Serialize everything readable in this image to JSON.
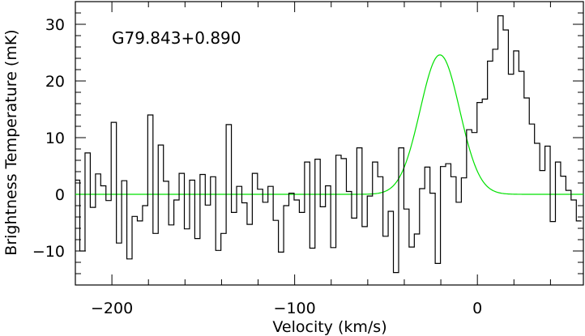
{
  "chart_data": {
    "type": "line",
    "xlabel": "Velocity (km/s)",
    "ylabel": "Brightness Temperature (mK)",
    "xlim": [
      -220,
      58
    ],
    "ylim": [
      -16,
      34
    ],
    "x_ticks": [
      -200,
      -100,
      0
    ],
    "x_tick_labels": [
      "−200",
      "−100",
      "0"
    ],
    "y_ticks": [
      -10,
      0,
      10,
      20,
      30
    ],
    "y_tick_labels": [
      "−10",
      "0",
      "10",
      "20",
      "30"
    ],
    "annotation": "G79.843+0.890",
    "grid": false,
    "series": [
      {
        "style": "step",
        "color": "#000000",
        "x": [
          -218.99,
          -216.13,
          -213.27,
          -210.41,
          -207.55,
          -204.69,
          -201.83,
          -198.97,
          -196.11,
          -193.25,
          -190.39,
          -187.53,
          -184.67,
          -181.81,
          -178.95,
          -176.09,
          -173.23,
          -170.37,
          -167.51,
          -164.65,
          -161.79,
          -158.93,
          -156.07,
          -153.21,
          -150.35,
          -147.49,
          -144.63,
          -141.77,
          -138.91,
          -136.05,
          -133.19,
          -130.33,
          -127.47,
          -124.61,
          -121.75,
          -118.89,
          -116.03,
          -113.17,
          -110.31,
          -107.45,
          -104.59,
          -101.73,
          -98.87,
          -96.01,
          -93.15,
          -90.29,
          -87.43,
          -84.57,
          -81.71,
          -78.85,
          -75.99,
          -73.13,
          -70.27,
          -67.41,
          -64.55,
          -61.69,
          -58.83,
          -55.97,
          -53.11,
          -50.25,
          -47.39,
          -44.53,
          -41.67,
          -38.81,
          -35.95,
          -33.09,
          -30.23,
          -27.37,
          -24.51,
          -21.65,
          -18.79,
          -15.93,
          -13.07,
          -10.21,
          -7.35,
          -4.49,
          -1.63,
          1.23,
          4.09,
          6.95,
          9.81,
          12.67,
          15.53,
          18.39,
          21.25,
          24.11,
          26.97,
          29.83,
          32.69,
          35.55,
          38.41,
          41.27,
          44.13,
          46.99,
          49.85,
          52.71,
          55.57
        ],
        "y": [
          2.5,
          -10,
          7.3,
          -2.3,
          3.6,
          1.5,
          -1.1,
          12.7,
          -8.6,
          2.4,
          -11.4,
          -3.9,
          -4.7,
          -2.0,
          14.0,
          -6.9,
          8.7,
          2.3,
          -5.4,
          -1.0,
          3.7,
          -6.1,
          2.5,
          -7.8,
          3.5,
          -1.9,
          3.1,
          -9.9,
          -6.9,
          12.3,
          -3.2,
          1.4,
          -1.5,
          -5.3,
          3.7,
          0.9,
          -1.4,
          1.4,
          -4.6,
          -10.2,
          -2.0,
          0.2,
          -1.0,
          -3.2,
          5.7,
          -9.5,
          6.2,
          -2.2,
          1.5,
          -9.4,
          6.9,
          6.3,
          0.5,
          -4.2,
          8.2,
          -5.7,
          -0.3,
          5.7,
          3.1,
          -7.4,
          -3.0,
          -13.8,
          8.2,
          -2.6,
          -9.3,
          -7.0,
          1.0,
          4.8,
          0.2,
          -12.2,
          4.9,
          5.4,
          3.1,
          -1.4,
          2.9,
          11.4,
          10.9,
          16.2,
          16.8,
          23.5,
          25.6,
          31.5,
          29.0,
          21.2,
          25.3,
          21.7,
          17.0,
          12.4,
          9.0,
          4.2,
          8.5,
          -4.8,
          5.7,
          3.2,
          0.7,
          -1.0,
          -4.7
        ]
      },
      {
        "style": "line",
        "color": "#00e000",
        "gaussian": {
          "amplitude": 24.6,
          "center": -20.5,
          "sigma": 10.8
        },
        "x_range": [
          -220,
          58
        ]
      }
    ]
  }
}
